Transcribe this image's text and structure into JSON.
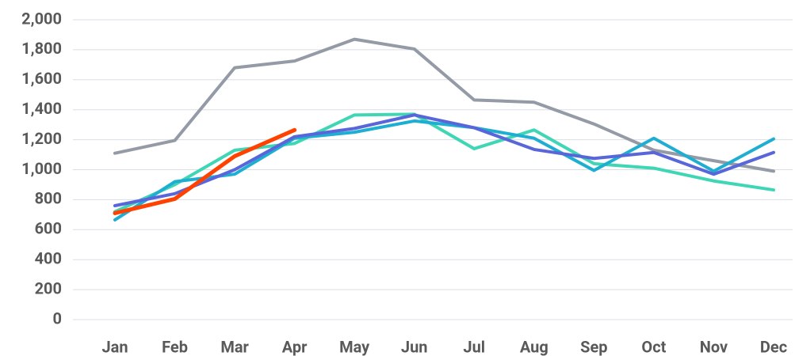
{
  "chart_data": {
    "type": "line",
    "categories": [
      "Jan",
      "Feb",
      "Mar",
      "Apr",
      "May",
      "Jun",
      "Jul",
      "Aug",
      "Sep",
      "Oct",
      "Nov",
      "Dec"
    ],
    "series": [
      {
        "color": "#949ba6",
        "values": [
          1110,
          1195,
          1680,
          1725,
          1870,
          1805,
          1465,
          1450,
          1305,
          1130,
          1060,
          990
        ]
      },
      {
        "color": "#3fd6b6",
        "values": [
          720,
          900,
          1130,
          1175,
          1365,
          1370,
          1140,
          1265,
          1040,
          1010,
          925,
          865
        ]
      },
      {
        "color": "#1eaed2",
        "values": [
          665,
          920,
          970,
          1210,
          1250,
          1325,
          1280,
          1210,
          995,
          1210,
          990,
          1205
        ]
      },
      {
        "color": "#5966d9",
        "values": [
          760,
          840,
          1000,
          1220,
          1275,
          1365,
          1280,
          1135,
          1075,
          1115,
          970,
          1115
        ]
      },
      {
        "color": "#ff4200",
        "values": [
          710,
          805,
          1090,
          1265,
          null,
          null,
          null,
          null,
          null,
          null,
          null,
          null
        ]
      }
    ],
    "ylim": [
      0,
      2000
    ],
    "yticks": [
      0,
      200,
      400,
      600,
      800,
      {
        "value": 1000,
        "label": "1,000"
      },
      {
        "value": 1200,
        "label": "1,200"
      },
      {
        "value": 1400,
        "label": "1,400"
      },
      {
        "value": 1600,
        "label": "1,600"
      },
      {
        "value": 1800,
        "label": "1,800"
      },
      {
        "value": 2000,
        "label": "2,000"
      }
    ],
    "grid": true
  }
}
